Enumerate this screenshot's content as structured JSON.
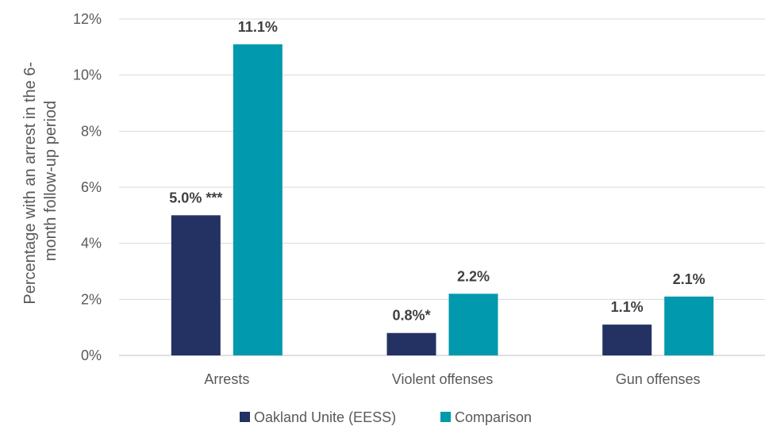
{
  "chart_data": {
    "type": "bar",
    "title": "",
    "xlabel": "",
    "ylabel_lines": [
      "Percentage with an arrest in the 6-",
      "month follow-up period"
    ],
    "ylim": [
      0,
      12
    ],
    "ytick_values": [
      0,
      2,
      4,
      6,
      8,
      10,
      12
    ],
    "ytick_labels": [
      "0%",
      "2%",
      "4%",
      "6%",
      "8%",
      "10%",
      "12%"
    ],
    "grid": true,
    "legend_position": "bottom",
    "categories": [
      "Arrests",
      "Violent offenses",
      "Gun offenses"
    ],
    "series": [
      {
        "name": "Oakland Unite (EESS)",
        "color": "#243263",
        "values": [
          5.0,
          0.8,
          1.1
        ],
        "labels": [
          "5.0% ***",
          "0.8%*",
          "1.1%"
        ]
      },
      {
        "name": "Comparison",
        "color": "#0099ad",
        "values": [
          11.1,
          2.2,
          2.1
        ],
        "labels": [
          "11.1%",
          "2.2%",
          "2.1%"
        ]
      }
    ]
  }
}
